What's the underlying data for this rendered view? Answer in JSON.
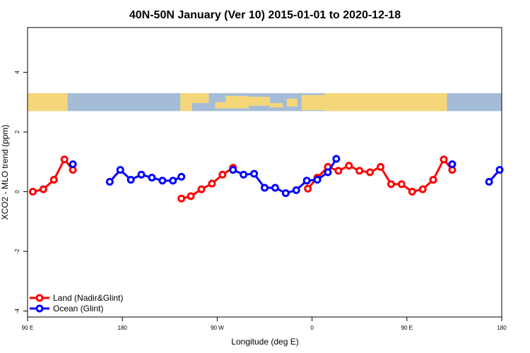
{
  "chart_data": {
    "type": "line",
    "title": "40N-50N January (Ver 10)   2015-01-01 to 2020-12-18",
    "xlabel": "Longitude (deg E)",
    "ylabel": "XCO2 - MLO trend (ppm)",
    "xlim": [
      90,
      540
    ],
    "ylim": [
      -4.2,
      5.5
    ],
    "x_ticks": [
      {
        "value": 90,
        "label": "90 E"
      },
      {
        "value": 180,
        "label": "180"
      },
      {
        "value": 270,
        "label": "90 W"
      },
      {
        "value": 360,
        "label": "0"
      },
      {
        "value": 450,
        "label": "90 E"
      },
      {
        "value": 540,
        "label": "180"
      }
    ],
    "y_ticks": [
      {
        "value": 4,
        "label": "4"
      },
      {
        "value": 2,
        "label": "2"
      },
      {
        "value": 0,
        "label": "0"
      },
      {
        "value": -2,
        "label": "-2"
      },
      {
        "value": -4,
        "label": "-4"
      }
    ],
    "map_strip": {
      "ymin": 2.7,
      "ymax": 3.3,
      "land_color": "#f5d77a",
      "ocean_color": "#a5bcd8"
    },
    "legend_position": "bottom-left",
    "series": [
      {
        "name": "Land (Nadir&Glint)",
        "color": "#ff0000",
        "segments": [
          [
            [
              95,
              0.0
            ],
            [
              105,
              0.08
            ],
            [
              115,
              0.4
            ],
            [
              125,
              1.08
            ],
            [
              133,
              0.73
            ]
          ],
          [
            [
              236,
              -0.23
            ],
            [
              245,
              -0.15
            ],
            [
              255,
              0.08
            ],
            [
              265,
              0.27
            ],
            [
              275,
              0.57
            ],
            [
              285,
              0.8
            ]
          ],
          [
            [
              356,
              0.1
            ],
            [
              365,
              0.47
            ],
            [
              375,
              0.83
            ],
            [
              385,
              0.7
            ],
            [
              395,
              0.87
            ],
            [
              405,
              0.7
            ],
            [
              415,
              0.65
            ],
            [
              425,
              0.83
            ],
            [
              435,
              0.25
            ],
            [
              445,
              0.25
            ],
            [
              455,
              0.0
            ],
            [
              465,
              0.08
            ],
            [
              475,
              0.4
            ],
            [
              485,
              1.08
            ],
            [
              493,
              0.73
            ]
          ]
        ]
      },
      {
        "name": "Ocean (Glint)",
        "color": "#0000ff",
        "segments": [
          [
            [
              133,
              0.92
            ]
          ],
          [
            [
              168,
              0.33
            ],
            [
              178,
              0.73
            ],
            [
              188,
              0.4
            ],
            [
              198,
              0.57
            ],
            [
              208,
              0.47
            ],
            [
              218,
              0.37
            ],
            [
              228,
              0.37
            ],
            [
              236,
              0.5
            ]
          ],
          [
            [
              285,
              0.73
            ],
            [
              295,
              0.57
            ],
            [
              305,
              0.6
            ],
            [
              315,
              0.13
            ],
            [
              325,
              0.13
            ],
            [
              335,
              -0.05
            ],
            [
              345,
              0.05
            ],
            [
              355,
              0.37
            ],
            [
              365,
              0.4
            ],
            [
              375,
              0.65
            ],
            [
              383,
              1.1
            ]
          ],
          [
            [
              493,
              0.92
            ]
          ],
          [
            [
              528,
              0.33
            ],
            [
              538,
              0.73
            ]
          ]
        ]
      }
    ]
  }
}
